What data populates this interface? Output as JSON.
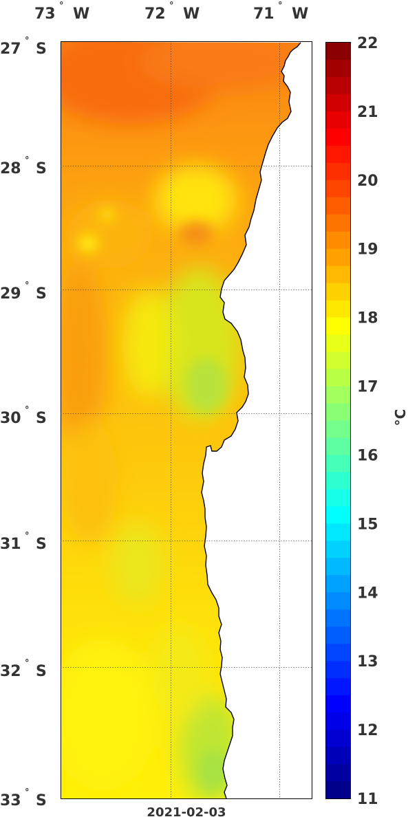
{
  "map": {
    "date_label": "2021-02-03",
    "longitude_labels": [
      {
        "deg": "73",
        "hemi": "W"
      },
      {
        "deg": "72",
        "hemi": "W"
      },
      {
        "deg": "71",
        "hemi": "W"
      }
    ],
    "latitude_labels": [
      {
        "deg": "27",
        "hemi": "S"
      },
      {
        "deg": "28",
        "hemi": "S"
      },
      {
        "deg": "29",
        "hemi": "S"
      },
      {
        "deg": "30",
        "hemi": "S"
      },
      {
        "deg": "31",
        "hemi": "S"
      },
      {
        "deg": "32",
        "hemi": "S"
      },
      {
        "deg": "33",
        "hemi": "S"
      }
    ],
    "degree_symbol": "°",
    "land_color": "#ffffff",
    "coastline_color": "#000000"
  },
  "colorbar": {
    "min": 11,
    "max": 22,
    "ticks": [
      "22",
      "21",
      "20",
      "19",
      "18",
      "17",
      "16",
      "15",
      "14",
      "13",
      "12",
      "11"
    ],
    "unit_label": "°C",
    "colormap": "jet"
  }
}
